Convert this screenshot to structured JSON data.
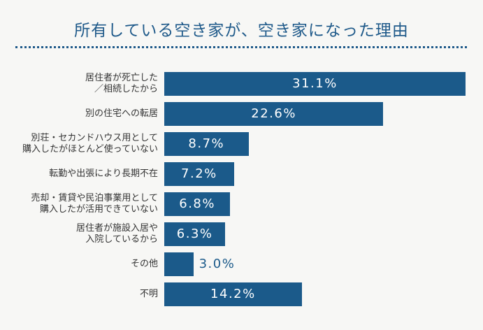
{
  "chart_data": {
    "type": "bar",
    "orientation": "horizontal",
    "title": "所有している空き家が、空き家になった理由",
    "categories": [
      "居住者が死亡した\n／相続したから",
      "別の住宅への転居",
      "別荘・セカンドハウス用として\n購入したがほとんど使っていない",
      "転勤や出張により長期不在",
      "売却・賃貸や民泊事業用として\n購入したが活用できていない",
      "居住者が施設入居や\n入院しているから",
      "その他",
      "不明"
    ],
    "values": [
      31.1,
      22.6,
      8.7,
      7.2,
      6.8,
      6.3,
      3.0,
      14.2
    ],
    "value_labels": [
      "31.1%",
      "22.6%",
      "8.7%",
      "7.2%",
      "6.8%",
      "6.3%",
      "3.0%",
      "14.2%"
    ],
    "color": "#1b5a8a"
  }
}
